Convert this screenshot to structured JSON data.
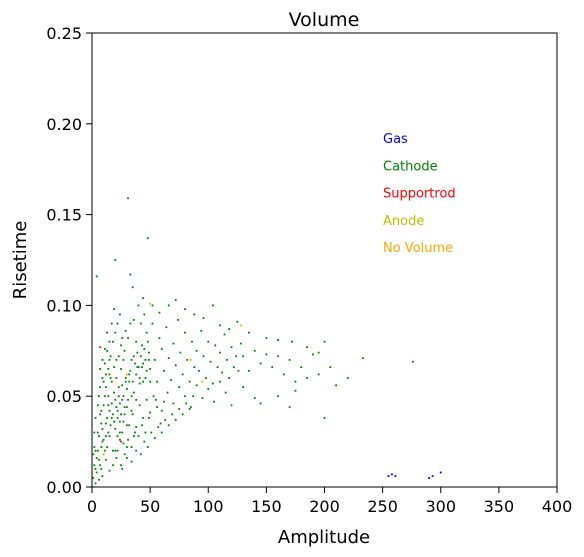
{
  "chart_data": {
    "type": "scatter",
    "title": "Volume",
    "xlabel": "Amplitude",
    "ylabel": "Risetime",
    "xlim": [
      0,
      400
    ],
    "ylim": [
      0,
      0.25
    ],
    "xticks": [
      "0",
      "50",
      "100",
      "150",
      "200",
      "250",
      "300",
      "350",
      "400"
    ],
    "yticks": [
      "0.00",
      "0.05",
      "0.10",
      "0.15",
      "0.20",
      "0.25"
    ],
    "grid": false,
    "legend_position": "upper-right",
    "series": [
      {
        "name": "Gas",
        "color": "#0000ff",
        "points": [
          [
            255,
            0.006
          ],
          [
            258,
            0.007
          ],
          [
            261,
            0.006
          ],
          [
            290,
            0.005
          ],
          [
            293,
            0.006
          ],
          [
            300,
            0.008
          ]
        ]
      },
      {
        "name": "Cathode",
        "color": "#008000",
        "points": [
          [
            1,
            0.005
          ],
          [
            2,
            0.012
          ],
          [
            3,
            0.02
          ],
          [
            4,
            0.008
          ],
          [
            5,
            0.03
          ],
          [
            6,
            0.015
          ],
          [
            7,
            0.04
          ],
          [
            8,
            0.01
          ],
          [
            9,
            0.025
          ],
          [
            10,
            0.018
          ],
          [
            11,
            0.05
          ],
          [
            12,
            0.035
          ],
          [
            13,
            0.022
          ],
          [
            14,
            0.045
          ],
          [
            15,
            0.028
          ],
          [
            16,
            0.06
          ],
          [
            17,
            0.038
          ],
          [
            18,
            0.012
          ],
          [
            19,
            0.052
          ],
          [
            20,
            0.032
          ],
          [
            21,
            0.07
          ],
          [
            22,
            0.042
          ],
          [
            23,
            0.055
          ],
          [
            24,
            0.026
          ],
          [
            25,
            0.065
          ],
          [
            26,
            0.048
          ],
          [
            27,
            0.036
          ],
          [
            28,
            0.075
          ],
          [
            29,
            0.058
          ],
          [
            30,
            0.044
          ],
          [
            3,
            0.002
          ],
          [
            6,
            0.004
          ],
          [
            9,
            0.006
          ],
          [
            12,
            0.015
          ],
          [
            15,
            0.009
          ],
          [
            18,
            0.02
          ],
          [
            21,
            0.016
          ],
          [
            24,
            0.03
          ],
          [
            27,
            0.024
          ],
          [
            30,
            0.034
          ],
          [
            4,
            0.116
          ],
          [
            20,
            0.125
          ],
          [
            31,
            0.159
          ],
          [
            48,
            0.137
          ],
          [
            33,
            0.117
          ],
          [
            35,
            0.11
          ],
          [
            40,
            0.1
          ],
          [
            45,
            0.095
          ],
          [
            38,
            0.08
          ],
          [
            42,
            0.09
          ],
          [
            32,
            0.062
          ],
          [
            34,
            0.05
          ],
          [
            36,
            0.072
          ],
          [
            39,
            0.066
          ],
          [
            41,
            0.057
          ],
          [
            43,
            0.078
          ],
          [
            44,
            0.068
          ],
          [
            46,
            0.06
          ],
          [
            47,
            0.085
          ],
          [
            49,
            0.074
          ],
          [
            50,
            0.065
          ],
          [
            52,
            0.09
          ],
          [
            54,
            0.07
          ],
          [
            56,
            0.058
          ],
          [
            58,
            0.082
          ],
          [
            60,
            0.076
          ],
          [
            62,
            0.064
          ],
          [
            64,
            0.088
          ],
          [
            66,
            0.071
          ],
          [
            68,
            0.059
          ],
          [
            70,
            0.079
          ],
          [
            72,
            0.067
          ],
          [
            74,
            0.092
          ],
          [
            76,
            0.074
          ],
          [
            78,
            0.062
          ],
          [
            80,
            0.085
          ],
          [
            82,
            0.07
          ],
          [
            84,
            0.058
          ],
          [
            86,
            0.08
          ],
          [
            88,
            0.066
          ],
          [
            90,
            0.075
          ],
          [
            92,
            0.064
          ],
          [
            94,
            0.086
          ],
          [
            96,
            0.072
          ],
          [
            98,
            0.06
          ],
          [
            100,
            0.08
          ],
          [
            102,
            0.069
          ],
          [
            104,
            0.057
          ],
          [
            106,
            0.078
          ],
          [
            108,
            0.066
          ],
          [
            110,
            0.074
          ],
          [
            112,
            0.063
          ],
          [
            114,
            0.084
          ],
          [
            116,
            0.07
          ],
          [
            118,
            0.06
          ],
          [
            120,
            0.077
          ],
          [
            122,
            0.066
          ],
          [
            124,
            0.072
          ],
          [
            126,
            0.064
          ],
          [
            128,
            0.079
          ],
          [
            130,
            0.072
          ],
          [
            135,
            0.064
          ],
          [
            140,
            0.075
          ],
          [
            145,
            0.068
          ],
          [
            150,
            0.073
          ],
          [
            155,
            0.066
          ],
          [
            160,
            0.072
          ],
          [
            165,
            0.062
          ],
          [
            170,
            0.07
          ],
          [
            175,
            0.058
          ],
          [
            180,
            0.066
          ],
          [
            185,
            0.06
          ],
          [
            190,
            0.073
          ],
          [
            195,
            0.062
          ],
          [
            200,
            0.038
          ],
          [
            205,
            0.066
          ],
          [
            210,
            0.056
          ],
          [
            220,
            0.06
          ],
          [
            233,
            0.071
          ],
          [
            276,
            0.069
          ],
          [
            55,
            0.048
          ],
          [
            60,
            0.042
          ],
          [
            65,
            0.052
          ],
          [
            70,
            0.046
          ],
          [
            75,
            0.055
          ],
          [
            80,
            0.05
          ],
          [
            85,
            0.044
          ],
          [
            90,
            0.056
          ],
          [
            95,
            0.049
          ],
          [
            100,
            0.054
          ],
          [
            105,
            0.047
          ],
          [
            110,
            0.058
          ],
          [
            115,
            0.052
          ],
          [
            120,
            0.045
          ],
          [
            130,
            0.055
          ],
          [
            140,
            0.049
          ],
          [
            145,
            0.046
          ],
          [
            160,
            0.05
          ],
          [
            170,
            0.044
          ],
          [
            175,
            0.053
          ],
          [
            35,
            0.04
          ],
          [
            38,
            0.033
          ],
          [
            41,
            0.045
          ],
          [
            44,
            0.038
          ],
          [
            47,
            0.048
          ],
          [
            50,
            0.041
          ],
          [
            53,
            0.05
          ],
          [
            56,
            0.044
          ],
          [
            59,
            0.035
          ],
          [
            62,
            0.047
          ],
          [
            36,
            0.092
          ],
          [
            44,
            0.104
          ],
          [
            52,
            0.1
          ],
          [
            58,
            0.096
          ],
          [
            66,
            0.1
          ],
          [
            72,
            0.103
          ],
          [
            80,
            0.098
          ],
          [
            88,
            0.095
          ],
          [
            96,
            0.093
          ],
          [
            104,
            0.1
          ],
          [
            110,
            0.089
          ],
          [
            118,
            0.087
          ],
          [
            125,
            0.091
          ],
          [
            135,
            0.085
          ],
          [
            150,
            0.082
          ],
          [
            160,
            0.081
          ],
          [
            172,
            0.08
          ],
          [
            185,
            0.077
          ],
          [
            200,
            0.08
          ],
          [
            195,
            0.074
          ],
          [
            8,
            0.035
          ],
          [
            10,
            0.045
          ],
          [
            12,
            0.055
          ],
          [
            14,
            0.065
          ],
          [
            16,
            0.072
          ],
          [
            18,
            0.08
          ],
          [
            20,
            0.085
          ],
          [
            22,
            0.09
          ],
          [
            24,
            0.095
          ],
          [
            26,
            0.082
          ],
          [
            2,
            0.03
          ],
          [
            3,
            0.038
          ],
          [
            5,
            0.045
          ],
          [
            7,
            0.055
          ],
          [
            9,
            0.06
          ],
          [
            11,
            0.068
          ],
          [
            13,
            0.075
          ],
          [
            15,
            0.08
          ],
          [
            17,
            0.09
          ],
          [
            19,
            0.098
          ],
          [
            22,
            0.02
          ],
          [
            25,
            0.012
          ],
          [
            28,
            0.018
          ],
          [
            31,
            0.026
          ],
          [
            34,
            0.022
          ],
          [
            37,
            0.03
          ],
          [
            40,
            0.028
          ],
          [
            43,
            0.034
          ],
          [
            46,
            0.03
          ],
          [
            49,
            0.038
          ],
          [
            26,
            0.01
          ],
          [
            30,
            0.016
          ],
          [
            34,
            0.014
          ],
          [
            38,
            0.02
          ],
          [
            42,
            0.018
          ],
          [
            45,
            0.025
          ],
          [
            48,
            0.022
          ],
          [
            51,
            0.03
          ],
          [
            54,
            0.027
          ],
          [
            57,
            0.033
          ],
          [
            60,
            0.03
          ],
          [
            63,
            0.037
          ],
          [
            66,
            0.034
          ],
          [
            69,
            0.04
          ],
          [
            72,
            0.037
          ],
          [
            75,
            0.043
          ],
          [
            78,
            0.04
          ],
          [
            81,
            0.046
          ],
          [
            84,
            0.043
          ],
          [
            87,
            0.05
          ],
          [
            1,
            0.018
          ],
          [
            2,
            0.022
          ],
          [
            3,
            0.01
          ],
          [
            4,
            0.016
          ],
          [
            5,
            0.02
          ],
          [
            6,
            0.028
          ],
          [
            7,
            0.012
          ],
          [
            8,
            0.022
          ],
          [
            9,
            0.032
          ],
          [
            10,
            0.026
          ],
          [
            11,
            0.02
          ],
          [
            12,
            0.028
          ],
          [
            13,
            0.038
          ],
          [
            14,
            0.03
          ],
          [
            15,
            0.042
          ],
          [
            16,
            0.034
          ],
          [
            17,
            0.046
          ],
          [
            18,
            0.04
          ],
          [
            19,
            0.036
          ],
          [
            20,
            0.048
          ],
          [
            21,
            0.044
          ],
          [
            22,
            0.038
          ],
          [
            23,
            0.05
          ],
          [
            24,
            0.046
          ],
          [
            25,
            0.04
          ],
          [
            26,
            0.056
          ],
          [
            27,
            0.05
          ],
          [
            28,
            0.044
          ],
          [
            29,
            0.06
          ],
          [
            30,
            0.054
          ],
          [
            31,
            0.048
          ],
          [
            32,
            0.058
          ],
          [
            33,
            0.064
          ],
          [
            34,
            0.07
          ],
          [
            35,
            0.058
          ],
          [
            36,
            0.052
          ],
          [
            37,
            0.068
          ],
          [
            38,
            0.062
          ],
          [
            39,
            0.074
          ],
          [
            40,
            0.066
          ],
          [
            41,
            0.06
          ],
          [
            42,
            0.072
          ],
          [
            43,
            0.066
          ],
          [
            44,
            0.058
          ],
          [
            45,
            0.076
          ],
          [
            46,
            0.07
          ],
          [
            47,
            0.064
          ],
          [
            48,
            0.08
          ],
          [
            49,
            0.07
          ],
          [
            50,
            0.058
          ],
          [
            20,
            0.02
          ],
          [
            22,
            0.028
          ],
          [
            24,
            0.036
          ],
          [
            26,
            0.03
          ],
          [
            28,
            0.04
          ],
          [
            30,
            0.022
          ],
          [
            32,
            0.034
          ],
          [
            34,
            0.042
          ],
          [
            36,
            0.028
          ],
          [
            38,
            0.048
          ],
          [
            15,
            0.062
          ],
          [
            17,
            0.058
          ],
          [
            19,
            0.066
          ],
          [
            21,
            0.06
          ],
          [
            23,
            0.072
          ],
          [
            25,
            0.078
          ],
          [
            27,
            0.07
          ],
          [
            29,
            0.086
          ],
          [
            31,
            0.082
          ],
          [
            33,
            0.09
          ],
          [
            6,
            0.05
          ],
          [
            7,
            0.065
          ],
          [
            8,
            0.042
          ],
          [
            9,
            0.07
          ],
          [
            10,
            0.058
          ],
          [
            11,
            0.076
          ],
          [
            12,
            0.062
          ],
          [
            13,
            0.085
          ],
          [
            14,
            0.05
          ],
          [
            15,
            0.07
          ]
        ]
      },
      {
        "name": "Supportrod",
        "color": "#ff0000",
        "points": [
          [
            7,
            0.077
          ],
          [
            25,
            0.025
          ]
        ]
      },
      {
        "name": "Anode",
        "color": "#bfbf00",
        "points": [
          [
            30,
            0.062
          ],
          [
            95,
            0.058
          ]
        ]
      },
      {
        "name": "No Volume",
        "color": "#ffa500",
        "points": [
          [
            50,
            0.101
          ],
          [
            128,
            0.089
          ],
          [
            10,
            0.018
          ],
          [
            85,
            0.07
          ]
        ]
      }
    ]
  }
}
